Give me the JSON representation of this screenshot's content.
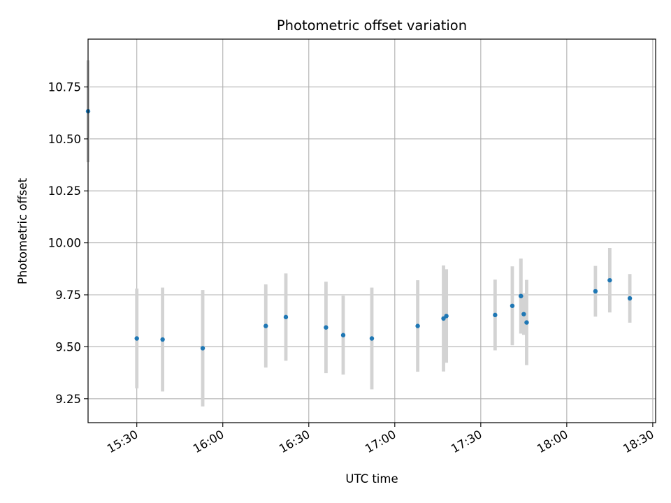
{
  "chart_data": {
    "type": "scatter",
    "title": "Photometric offset variation",
    "xlabel": "UTC time",
    "ylabel": "Photometric offset",
    "grid": true,
    "xlim": [
      "15:13",
      "18:31"
    ],
    "ylim": [
      9.135,
      10.98
    ],
    "x_ticks": [
      "15:30",
      "16:00",
      "16:30",
      "17:00",
      "17:30",
      "18:00",
      "18:30"
    ],
    "y_ticks": [
      9.25,
      9.5,
      9.75,
      10.0,
      10.25,
      10.5,
      10.75
    ],
    "y_tick_labels": [
      "9.25",
      "9.50",
      "9.75",
      "10.00",
      "10.25",
      "10.50",
      "10.75"
    ],
    "marker_color": "#1f77b4",
    "errorbar_color": "#d3d3d3",
    "points": [
      {
        "x": "15:13",
        "y": 10.633,
        "err": 0.245
      },
      {
        "x": "15:30",
        "y": 9.54,
        "err": 0.24
      },
      {
        "x": "15:39",
        "y": 9.535,
        "err": 0.25
      },
      {
        "x": "15:53",
        "y": 9.493,
        "err": 0.28
      },
      {
        "x": "16:15",
        "y": 9.6,
        "err": 0.2
      },
      {
        "x": "16:22",
        "y": 9.643,
        "err": 0.21
      },
      {
        "x": "16:36",
        "y": 9.593,
        "err": 0.22
      },
      {
        "x": "16:42",
        "y": 9.556,
        "err": 0.19
      },
      {
        "x": "16:52",
        "y": 9.54,
        "err": 0.245
      },
      {
        "x": "17:08",
        "y": 9.6,
        "err": 0.22
      },
      {
        "x": "17:17",
        "y": 9.636,
        "err": 0.255
      },
      {
        "x": "17:18",
        "y": 9.648,
        "err": 0.225
      },
      {
        "x": "17:35",
        "y": 9.653,
        "err": 0.17
      },
      {
        "x": "17:41",
        "y": 9.697,
        "err": 0.19
      },
      {
        "x": "17:44",
        "y": 9.744,
        "err": 0.18
      },
      {
        "x": "17:44",
        "y": 9.744,
        "err": 0.18
      },
      {
        "x": "17:45",
        "y": 9.657,
        "err": 0.1
      },
      {
        "x": "17:46",
        "y": 9.617,
        "err": 0.205
      },
      {
        "x": "18:10",
        "y": 9.767,
        "err": 0.122
      },
      {
        "x": "18:15",
        "y": 9.82,
        "err": 0.155
      },
      {
        "x": "18:22",
        "y": 9.733,
        "err": 0.117
      }
    ]
  }
}
